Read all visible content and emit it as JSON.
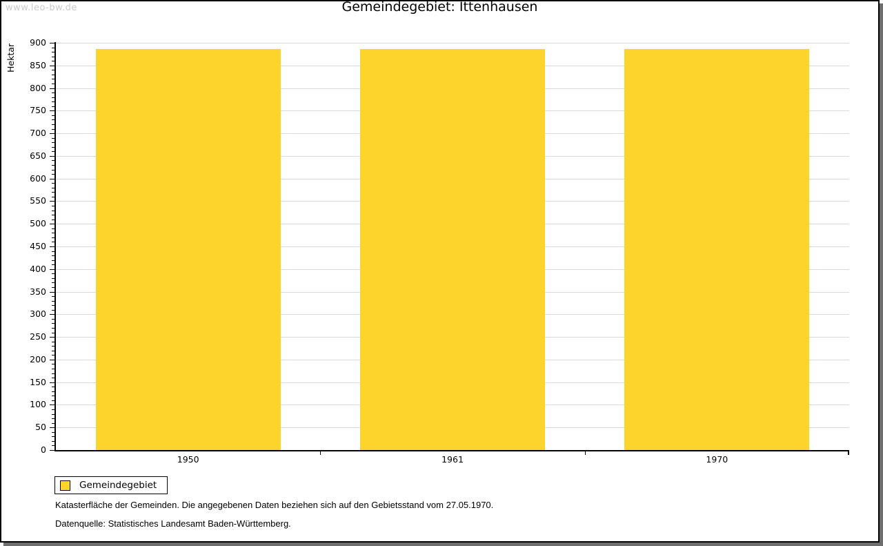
{
  "watermark": "www.leo-bw.de",
  "footer": {
    "line1": "Katasterfläche der Gemeinden. Die angegebenen Daten beziehen sich auf den Gebietsstand vom 27.05.1970.",
    "line2": "Datenquelle: Statistisches Landesamt Baden-Württemberg."
  },
  "colors": {
    "bar": "#fdd42b",
    "grid": "#d9d9d9",
    "axis": "#000000",
    "watermark": "#cbcbcb",
    "frame_shadow": "#6e6e6e"
  },
  "chart_data": {
    "type": "bar",
    "title": "Gemeindegebiet: Ittenhausen",
    "categories": [
      "1950",
      "1961",
      "1970"
    ],
    "series": [
      {
        "name": "Gemeindegebiet",
        "values": [
          886,
          886,
          886
        ],
        "color": "#fdd42b"
      }
    ],
    "xlabel": "",
    "ylabel": "Hektar",
    "unit": "Hektar",
    "ylim": [
      0,
      900
    ],
    "ytick_step": 50,
    "yminor_step": 10,
    "grid": true,
    "legend_position": "bottom-left"
  }
}
